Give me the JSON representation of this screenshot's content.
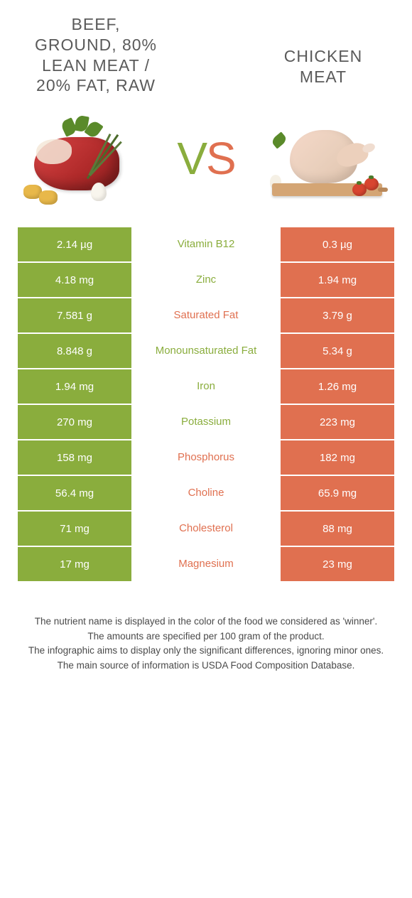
{
  "colors": {
    "left_bg": "#8aad3d",
    "right_bg": "#e07050",
    "title_color": "#5a5a5a",
    "footer_color": "#4a4a4a",
    "background": "#ffffff"
  },
  "typography": {
    "title_fontsize": 23,
    "cell_fontsize": 15,
    "footer_fontsize": 13.5,
    "vs_fontsize": 64
  },
  "header": {
    "left_title": "BEEF, GROUND, 80% LEAN MEAT / 20% FAT, RAW",
    "right_title": "CHICKEN MEAT",
    "vs_v": "V",
    "vs_s": "S"
  },
  "rows": [
    {
      "left": "2.14 µg",
      "label": "Vitamin B12",
      "right": "0.3 µg",
      "winner": "left"
    },
    {
      "left": "4.18 mg",
      "label": "Zinc",
      "right": "1.94 mg",
      "winner": "left"
    },
    {
      "left": "7.581 g",
      "label": "Saturated Fat",
      "right": "3.79 g",
      "winner": "right"
    },
    {
      "left": "8.848 g",
      "label": "Monounsaturated Fat",
      "right": "5.34 g",
      "winner": "left"
    },
    {
      "left": "1.94 mg",
      "label": "Iron",
      "right": "1.26 mg",
      "winner": "left"
    },
    {
      "left": "270 mg",
      "label": "Potassium",
      "right": "223 mg",
      "winner": "left"
    },
    {
      "left": "158 mg",
      "label": "Phosphorus",
      "right": "182 mg",
      "winner": "right"
    },
    {
      "left": "56.4 mg",
      "label": "Choline",
      "right": "65.9 mg",
      "winner": "right"
    },
    {
      "left": "71 mg",
      "label": "Cholesterol",
      "right": "88 mg",
      "winner": "right"
    },
    {
      "left": "17 mg",
      "label": "Magnesium",
      "right": "23 mg",
      "winner": "right"
    }
  ],
  "footer": {
    "line1": "The nutrient name is displayed in the color of the food we considered as 'winner'.",
    "line2": "The amounts are specified per 100 gram of the product.",
    "line3": "The infographic aims to display only the significant differences, ignoring minor ones.",
    "line4": "The main source of information is USDA Food Composition Database."
  }
}
